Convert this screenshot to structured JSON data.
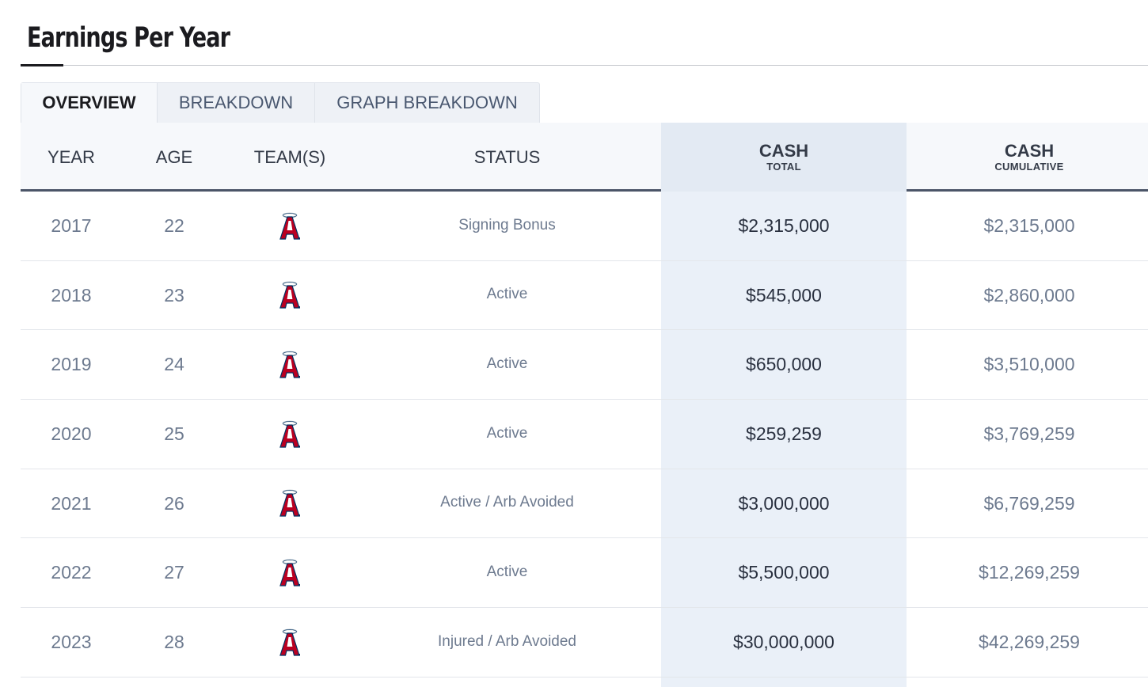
{
  "section": {
    "title": "Earnings Per Year"
  },
  "tabs": [
    {
      "label": "OVERVIEW",
      "active": true
    },
    {
      "label": "BREAKDOWN",
      "active": false
    },
    {
      "label": "GRAPH BREAKDOWN",
      "active": false
    }
  ],
  "table": {
    "headers": {
      "year": "YEAR",
      "age": "AGE",
      "teams": "TEAM(S)",
      "status": "STATUS",
      "cash_total": {
        "main": "CASH",
        "sub": "TOTAL"
      },
      "cash_cumulative": {
        "main": "CASH",
        "sub": "CUMULATIVE"
      }
    },
    "rows": [
      {
        "year": "2017",
        "age": "22",
        "team_icon": "angels-logo-icon",
        "status": "Signing Bonus",
        "cash_total": "$2,315,000",
        "cash_cumulative": "$2,315,000"
      },
      {
        "year": "2018",
        "age": "23",
        "team_icon": "angels-logo-icon",
        "status": "Active",
        "cash_total": "$545,000",
        "cash_cumulative": "$2,860,000"
      },
      {
        "year": "2019",
        "age": "24",
        "team_icon": "angels-logo-icon",
        "status": "Active",
        "cash_total": "$650,000",
        "cash_cumulative": "$3,510,000"
      },
      {
        "year": "2020",
        "age": "25",
        "team_icon": "angels-logo-icon",
        "status": "Active",
        "cash_total": "$259,259",
        "cash_cumulative": "$3,769,259"
      },
      {
        "year": "2021",
        "age": "26",
        "team_icon": "angels-logo-icon",
        "status": "Active / Arb Avoided",
        "cash_total": "$3,000,000",
        "cash_cumulative": "$6,769,259"
      },
      {
        "year": "2022",
        "age": "27",
        "team_icon": "angels-logo-icon",
        "status": "Active",
        "cash_total": "$5,500,000",
        "cash_cumulative": "$12,269,259"
      },
      {
        "year": "2023",
        "age": "28",
        "team_icon": "angels-logo-icon",
        "status": "Injured / Arb Avoided",
        "cash_total": "$30,000,000",
        "cash_cumulative": "$42,269,259"
      }
    ]
  },
  "colors": {
    "logo_red": "#ba0021",
    "logo_navy": "#003263",
    "logo_silver": "#c4ced4"
  }
}
